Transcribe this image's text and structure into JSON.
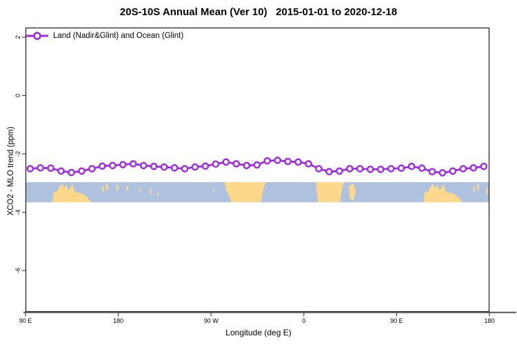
{
  "chart_data": {
    "type": "line",
    "title": "20S-10S Annual Mean (Ver 10)   2015-01-01 to 2020-12-18",
    "xlabel": "Longitude (deg E)",
    "ylabel": "XCO2 - MLO trend (ppm)",
    "legend": [
      {
        "label": "Land (Nadir&Glint) and Ocean (Glint)",
        "marker": "open-circle"
      }
    ],
    "x_axis": {
      "tick_labels": [
        "90 E",
        "180",
        "90 W",
        "0",
        "90 E",
        "180"
      ],
      "tick_deg": [
        0,
        90,
        180,
        270,
        360,
        450
      ],
      "span_deg": 450,
      "note": "axis starts at 90E and wraps eastward around the globe 1.25 times"
    },
    "y_axis": {
      "tick_values": [
        2,
        0,
        -2,
        -4,
        -6
      ],
      "range": [
        -7.4,
        2.3
      ],
      "grid": false
    },
    "series": [
      {
        "name": "Land (Nadir&Glint) and Ocean (Glint)",
        "marker_start_deg": 4.5,
        "marker_step_deg": 10,
        "longitudes": [
          "95E",
          "105E",
          "115E",
          "125E",
          "135E",
          "145E",
          "155E",
          "165E",
          "175E",
          "175W",
          "165W",
          "155W",
          "145W",
          "135W",
          "125W",
          "115W",
          "105W",
          "95W",
          "85W",
          "75W",
          "65W",
          "55W",
          "45W",
          "35W",
          "25W",
          "15W",
          "5W",
          "5E",
          "15E",
          "25E",
          "35E",
          "45E",
          "55E",
          "65E",
          "75E",
          "85E",
          "95E",
          "105E",
          "115E",
          "125E",
          "135E",
          "145E",
          "155E",
          "165E",
          "175E"
        ],
        "values": [
          -2.51,
          -2.48,
          -2.49,
          -2.59,
          -2.64,
          -2.59,
          -2.51,
          -2.42,
          -2.4,
          -2.37,
          -2.34,
          -2.4,
          -2.43,
          -2.45,
          -2.48,
          -2.51,
          -2.45,
          -2.42,
          -2.35,
          -2.28,
          -2.34,
          -2.4,
          -2.38,
          -2.24,
          -2.22,
          -2.26,
          -2.28,
          -2.34,
          -2.51,
          -2.61,
          -2.59,
          -2.51,
          -2.51,
          -2.53,
          -2.53,
          -2.51,
          -2.49,
          -2.43,
          -2.49,
          -2.61,
          -2.65,
          -2.59,
          -2.51,
          -2.48,
          -2.43
        ]
      }
    ],
    "map_band": {
      "description": "latitude strip 20S-10S drawn across plot",
      "top_ppm": -2.97,
      "bottom_ppm": -3.66,
      "land_polygons": [
        {
          "name": "australia-new-guinea",
          "base_deg": 26,
          "points": [
            [
              0,
              1
            ],
            [
              1,
              0.58
            ],
            [
              2.5,
              0.42
            ],
            [
              4.5,
              0.5
            ],
            [
              7,
              0.22
            ],
            [
              9.5,
              0.08
            ],
            [
              11.5,
              0.32
            ],
            [
              13.5,
              0.1
            ],
            [
              15.5,
              0.42
            ],
            [
              17.5,
              0.28
            ],
            [
              19.5,
              0.08
            ],
            [
              21.5,
              0.45
            ],
            [
              24.5,
              0.52
            ],
            [
              28.5,
              0.56
            ],
            [
              32.5,
              0.68
            ],
            [
              36.5,
              0.9
            ],
            [
              38,
              1
            ]
          ]
        },
        {
          "name": "australia-new-guinea-wrap",
          "base_deg": 386,
          "points": [
            [
              0,
              1
            ],
            [
              1,
              0.58
            ],
            [
              2.5,
              0.42
            ],
            [
              4.5,
              0.5
            ],
            [
              7,
              0.22
            ],
            [
              9.5,
              0.08
            ],
            [
              11.5,
              0.32
            ],
            [
              13.5,
              0.1
            ],
            [
              15.5,
              0.42
            ],
            [
              17.5,
              0.28
            ],
            [
              19.5,
              0.08
            ],
            [
              21.5,
              0.45
            ],
            [
              24.5,
              0.52
            ],
            [
              28.5,
              0.56
            ],
            [
              32.5,
              0.68
            ],
            [
              36.5,
              0.9
            ],
            [
              38,
              1
            ]
          ]
        },
        {
          "name": "south-america",
          "base_deg": 0,
          "points": [
            [
              193,
              0
            ],
            [
              233,
              0
            ],
            [
              230.5,
              0.4
            ],
            [
              228.5,
              1
            ],
            [
              200,
              1
            ],
            [
              194.5,
              0.35
            ]
          ]
        },
        {
          "name": "africa",
          "base_deg": 0,
          "points": [
            [
              281.5,
              0
            ],
            [
              308.5,
              0
            ],
            [
              306.5,
              0.55
            ],
            [
              305,
              1
            ],
            [
              284,
              1
            ],
            [
              282.5,
              0.5
            ]
          ]
        },
        {
          "name": "madagascar",
          "base_deg": 0,
          "points": [
            [
              313.5,
              0.2
            ],
            [
              318.5,
              0.08
            ],
            [
              320.5,
              0.45
            ],
            [
              318,
              0.92
            ],
            [
              314.5,
              0.8
            ]
          ]
        }
      ],
      "island_specks": [
        {
          "deg": 74.5,
          "w": 1.5,
          "f0": 0.2,
          "f1": 0.5
        },
        {
          "deg": 78,
          "w": 2,
          "f0": 0.08,
          "f1": 0.38
        },
        {
          "deg": 88,
          "w": 2,
          "f0": 0.12,
          "f1": 0.4
        },
        {
          "deg": 98,
          "w": 1.5,
          "f0": 0.18,
          "f1": 0.42
        },
        {
          "deg": 110,
          "w": 1.2,
          "f0": 0.25,
          "f1": 0.45
        },
        {
          "deg": 120.5,
          "w": 1.5,
          "f0": 0.35,
          "f1": 0.62
        },
        {
          "deg": 128,
          "w": 1,
          "f0": 0.5,
          "f1": 0.72
        },
        {
          "deg": 182,
          "w": 1,
          "f0": 0.3,
          "f1": 0.5
        },
        {
          "deg": 434.5,
          "w": 1.5,
          "f0": 0.2,
          "f1": 0.5
        },
        {
          "deg": 438,
          "w": 2,
          "f0": 0.08,
          "f1": 0.38
        },
        {
          "deg": 447,
          "w": 1.5,
          "f0": 0.3,
          "f1": 0.6
        }
      ]
    },
    "colors": {
      "line": "#A028E8",
      "marker_fill": "#FFFFFF",
      "ocean": "#AEC2DF",
      "land": "#FBD88B",
      "border": "#1a1a1a",
      "axis_bottom": "#5f5f5f",
      "tick": "#333333",
      "text": "#000000",
      "background": "#FFFFFF"
    }
  }
}
